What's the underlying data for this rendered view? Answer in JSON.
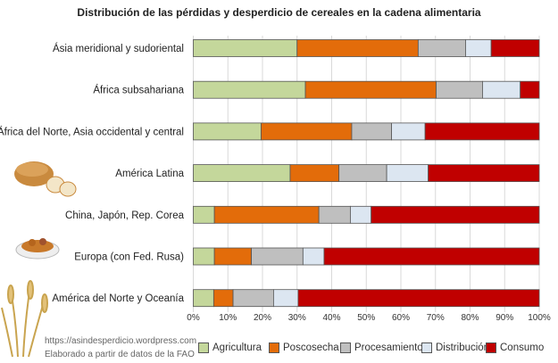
{
  "chart_data": {
    "type": "bar",
    "orientation": "horizontal",
    "stacked": "percent",
    "title": "Distribución de las pérdidas y desperdicio de cereales en la cadena alimentaria",
    "categories": [
      "Ásia meridional y sudoriental",
      "África subsahariana",
      "África del Norte, Asia occidental y central",
      "América Latina",
      "China, Japón, Rep. Corea",
      "Europa (con Fed. Rusa)",
      "América del Norte y Oceanía"
    ],
    "series": [
      {
        "name": "Agricultura",
        "color": "#c4d79b",
        "values": [
          30,
          32.4,
          19.6,
          28,
          6.1,
          6.1,
          5.9
        ]
      },
      {
        "name": "Poscosecha",
        "color": "#e36c0a",
        "values": [
          35,
          37.8,
          26.2,
          14.1,
          30.2,
          10.7,
          5.6
        ]
      },
      {
        "name": "Procesamiento",
        "color": "#bfbfbf",
        "values": [
          13.7,
          13.4,
          11.5,
          13.8,
          9.1,
          14.9,
          11.7
        ]
      },
      {
        "name": "Distribución",
        "color": "#dce6f1",
        "values": [
          7.4,
          10.9,
          9.7,
          12,
          6,
          6.1,
          7.1
        ]
      },
      {
        "name": "Consumo",
        "color": "#c00000",
        "values": [
          13.9,
          5.5,
          33,
          32.1,
          48.6,
          62.2,
          69.7
        ]
      }
    ],
    "xlim": [
      0,
      100
    ],
    "xticks": [
      "0%",
      "10%",
      "20%",
      "30%",
      "40%",
      "50%",
      "60%",
      "70%",
      "80%",
      "90%",
      "100%"
    ],
    "grid": true,
    "legend": "bottom"
  },
  "footer": {
    "url": "https://asindesperdicio.wordpress.com",
    "source": "Elaborado a partir de datos de la FAO"
  }
}
